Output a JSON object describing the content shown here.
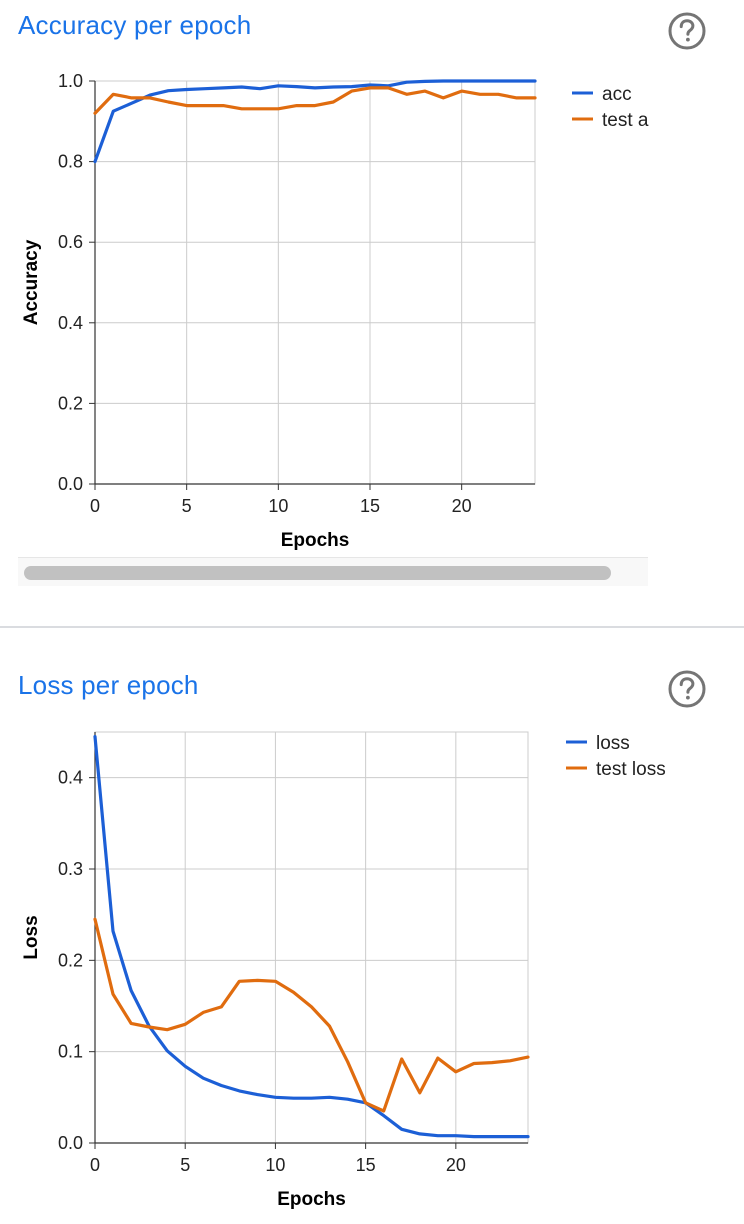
{
  "accuracy_card": {
    "title": "Accuracy per epoch",
    "help_icon": "question-circle-icon"
  },
  "loss_card": {
    "title": "Loss per epoch",
    "help_icon": "question-circle-icon"
  },
  "colors": {
    "title_blue": "#1a73e8",
    "series_blue": "#1c5fd6",
    "series_orange": "#e06c0f",
    "grid": "#cccccc",
    "axis": "#333333",
    "divider": "#dadce0"
  },
  "chart_data": [
    {
      "type": "line",
      "title": "",
      "xlabel": "Epochs",
      "ylabel": "Accuracy",
      "xlim": [
        0,
        24
      ],
      "ylim": [
        0,
        1
      ],
      "xticks": [
        "0",
        "5",
        "10",
        "15",
        "20"
      ],
      "yticks": [
        "0.0",
        "0.2",
        "0.4",
        "0.6",
        "0.8",
        "1.0"
      ],
      "grid": true,
      "legend": "right",
      "x": [
        0,
        1,
        2,
        3,
        4,
        5,
        6,
        7,
        8,
        9,
        10,
        11,
        12,
        13,
        14,
        15,
        16,
        17,
        18,
        19,
        20,
        21,
        22,
        23,
        24
      ],
      "series": [
        {
          "name": "acc",
          "color": "#1c5fd6",
          "values": [
            0.8,
            0.925,
            0.945,
            0.965,
            0.976,
            0.979,
            0.981,
            0.983,
            0.985,
            0.981,
            0.988,
            0.986,
            0.983,
            0.985,
            0.986,
            0.99,
            0.988,
            0.997,
            0.999,
            1.0,
            1.0,
            1.0,
            1.0,
            1.0,
            1.0
          ]
        },
        {
          "name": "test acc",
          "legend_label": "test a",
          "color": "#e06c0f",
          "values": [
            0.92,
            0.967,
            0.958,
            0.958,
            0.948,
            0.939,
            0.939,
            0.939,
            0.931,
            0.931,
            0.931,
            0.939,
            0.939,
            0.948,
            0.975,
            0.983,
            0.983,
            0.967,
            0.975,
            0.958,
            0.975,
            0.967,
            0.967,
            0.958,
            0.958
          ]
        }
      ]
    },
    {
      "type": "line",
      "title": "",
      "xlabel": "Epochs",
      "ylabel": "Loss",
      "xlim": [
        0,
        24
      ],
      "ylim": [
        0,
        0.45
      ],
      "xticks": [
        "0",
        "5",
        "10",
        "15",
        "20"
      ],
      "yticks": [
        "0.0",
        "0.1",
        "0.2",
        "0.3",
        "0.4"
      ],
      "grid": true,
      "legend": "right",
      "x": [
        0,
        1,
        2,
        3,
        4,
        5,
        6,
        7,
        8,
        9,
        10,
        11,
        12,
        13,
        14,
        15,
        16,
        17,
        18,
        19,
        20,
        21,
        22,
        23,
        24
      ],
      "series": [
        {
          "name": "loss",
          "color": "#1c5fd6",
          "values": [
            0.445,
            0.232,
            0.167,
            0.128,
            0.101,
            0.084,
            0.071,
            0.063,
            0.057,
            0.053,
            0.05,
            0.049,
            0.049,
            0.05,
            0.048,
            0.044,
            0.03,
            0.015,
            0.01,
            0.008,
            0.008,
            0.007,
            0.007,
            0.007,
            0.007
          ]
        },
        {
          "name": "test loss",
          "color": "#e06c0f",
          "values": [
            0.245,
            0.163,
            0.131,
            0.127,
            0.124,
            0.13,
            0.143,
            0.149,
            0.177,
            0.178,
            0.177,
            0.165,
            0.149,
            0.128,
            0.089,
            0.044,
            0.035,
            0.092,
            0.055,
            0.093,
            0.078,
            0.087,
            0.088,
            0.09,
            0.094
          ]
        }
      ]
    }
  ]
}
